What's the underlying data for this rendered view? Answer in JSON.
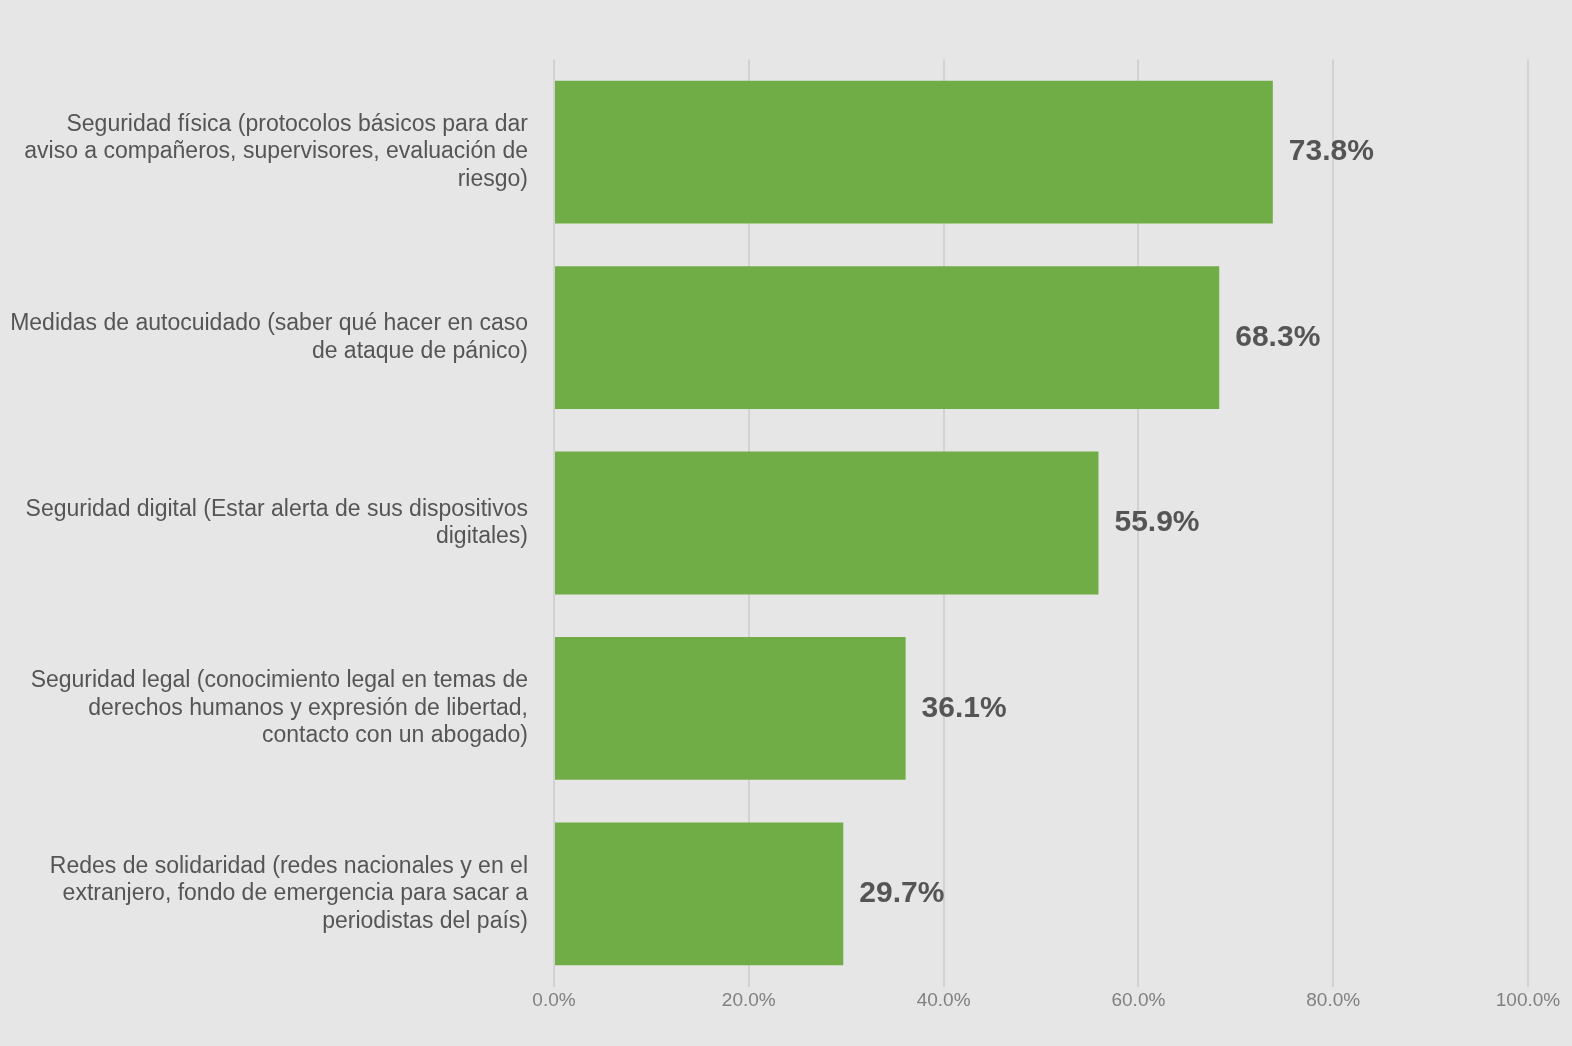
{
  "chart_data": {
    "type": "bar",
    "orientation": "horizontal",
    "categories": [
      "Seguridad física (protocolos básicos para dar aviso a compañeros, supervisores, evaluación de riesgo)",
      "Medidas de autocuidado (saber qué hacer en caso de ataque de pánico)",
      "Seguridad digital (Estar alerta de sus dispositivos digitales)",
      "Seguridad legal (conocimiento legal en temas de derechos humanos y expresión de libertad, contacto con un abogado)",
      "Redes de solidaridad (redes nacionales y en el extranjero, fondo de emergencia para sacar a periodistas del país)"
    ],
    "values": [
      73.8,
      68.3,
      55.9,
      36.1,
      29.7
    ],
    "value_labels": [
      "73.8%",
      "68.3%",
      "55.9%",
      "36.1%",
      "29.7%"
    ],
    "color": "#70ad47",
    "xlim": [
      0,
      100
    ],
    "xticks": [
      {
        "value": 0,
        "label": "0.0%"
      },
      {
        "value": 20,
        "label": "20.0%"
      },
      {
        "value": 40,
        "label": "40.0%"
      },
      {
        "value": 60,
        "label": "60.0%"
      },
      {
        "value": 80,
        "label": "80.0%"
      },
      {
        "value": 100,
        "label": "100.0%"
      }
    ],
    "grid": "x",
    "legend": false
  }
}
